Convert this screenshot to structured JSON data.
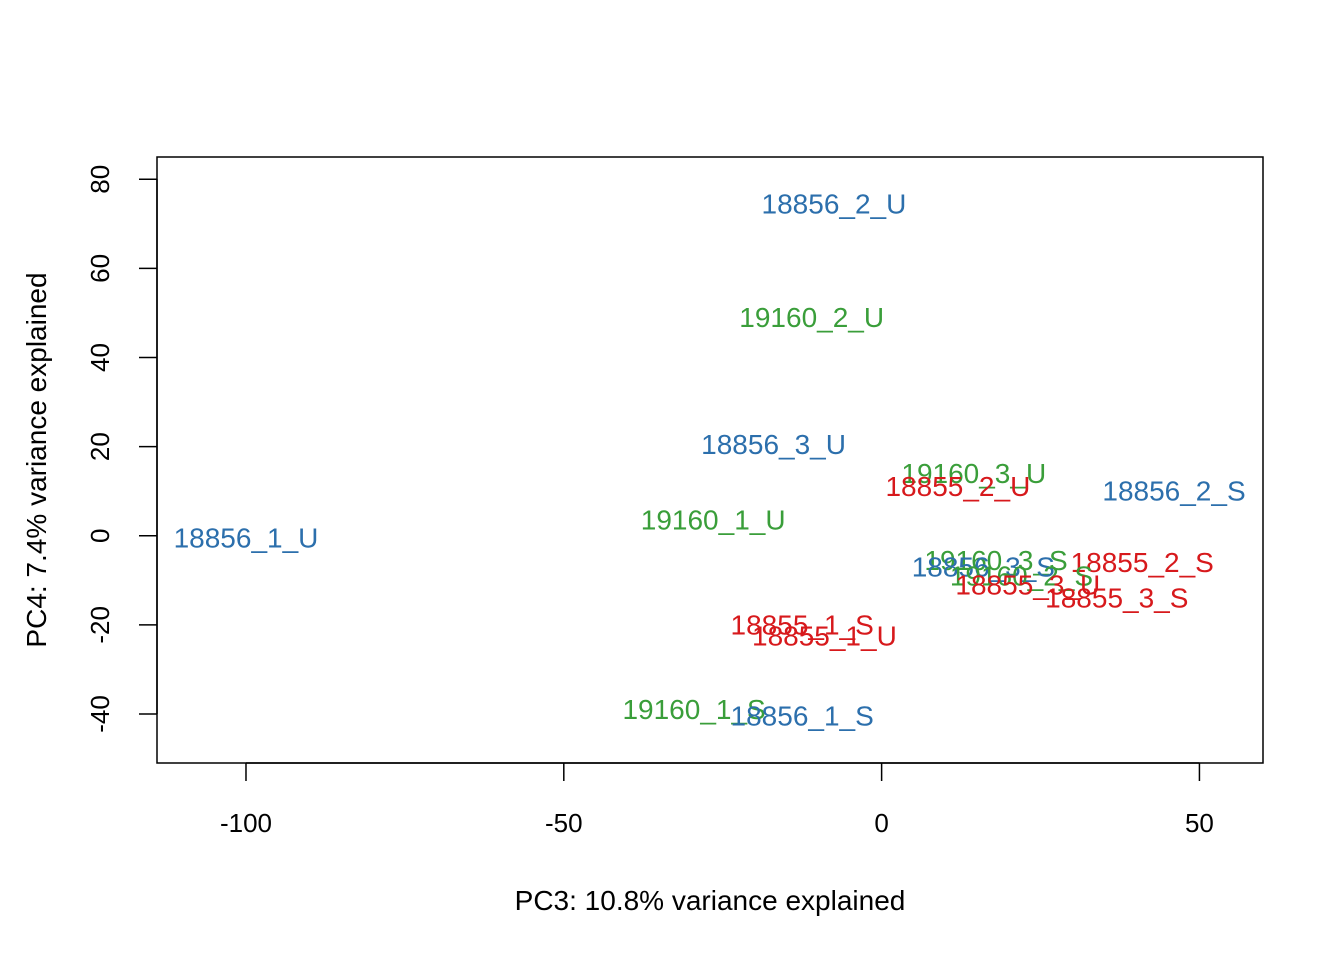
{
  "colors": {
    "18855": "#D7191C",
    "18856": "#2C6FAC",
    "19160": "#3A9E3A"
  },
  "chart_data": {
    "type": "scatter",
    "title": "",
    "xlabel": "PC3: 10.8% variance explained",
    "ylabel": "PC4: 7.4% variance explained",
    "xlim": [
      -114,
      60
    ],
    "ylim": [
      -51,
      85
    ],
    "xticks": [
      -100,
      -50,
      0,
      50
    ],
    "xtick_labels": [
      "-100",
      "-50",
      "0",
      "50"
    ],
    "yticks": [
      -40,
      -20,
      0,
      20,
      40,
      60,
      80
    ],
    "ytick_labels": [
      "-40",
      "-20",
      "0",
      "20",
      "40",
      "60",
      "80"
    ],
    "grid": false,
    "legend": "none",
    "points": [
      {
        "label": "18856_2_U",
        "x": -7.5,
        "y": 74.5,
        "group": "18856"
      },
      {
        "label": "19160_2_U",
        "x": -11,
        "y": 49,
        "group": "19160"
      },
      {
        "label": "18856_3_U",
        "x": -17,
        "y": 20.5,
        "group": "18856"
      },
      {
        "label": "19160_3_U",
        "x": 14.5,
        "y": 14,
        "group": "19160"
      },
      {
        "label": "18855_2_U",
        "x": 12,
        "y": 11,
        "group": "18855"
      },
      {
        "label": "18856_2_S",
        "x": 46,
        "y": 10,
        "group": "18856"
      },
      {
        "label": "19160_1_U",
        "x": -26.5,
        "y": 3.5,
        "group": "19160"
      },
      {
        "label": "18856_1_U",
        "x": -100,
        "y": -0.5,
        "group": "18856"
      },
      {
        "label": "19160_3_S",
        "x": 18,
        "y": -5.5,
        "group": "19160"
      },
      {
        "label": "18855_2_S",
        "x": 41,
        "y": -6,
        "group": "18855"
      },
      {
        "label": "18856_3_S",
        "x": 16,
        "y": -7,
        "group": "18856"
      },
      {
        "label": "19160_2_S",
        "x": 22,
        "y": -9,
        "group": "19160"
      },
      {
        "label": "18855_3_U",
        "x": 23,
        "y": -11,
        "group": "18855"
      },
      {
        "label": "18855_3_S",
        "x": 37,
        "y": -14,
        "group": "18855"
      },
      {
        "label": "18855_1_S",
        "x": -12.5,
        "y": -20,
        "group": "18855"
      },
      {
        "label": "18855_1_U",
        "x": -9,
        "y": -22.5,
        "group": "18855"
      },
      {
        "label": "19160_1_S",
        "x": -29.5,
        "y": -39,
        "group": "19160"
      },
      {
        "label": "18856_1_S",
        "x": -12.5,
        "y": -40.5,
        "group": "18856"
      }
    ]
  }
}
